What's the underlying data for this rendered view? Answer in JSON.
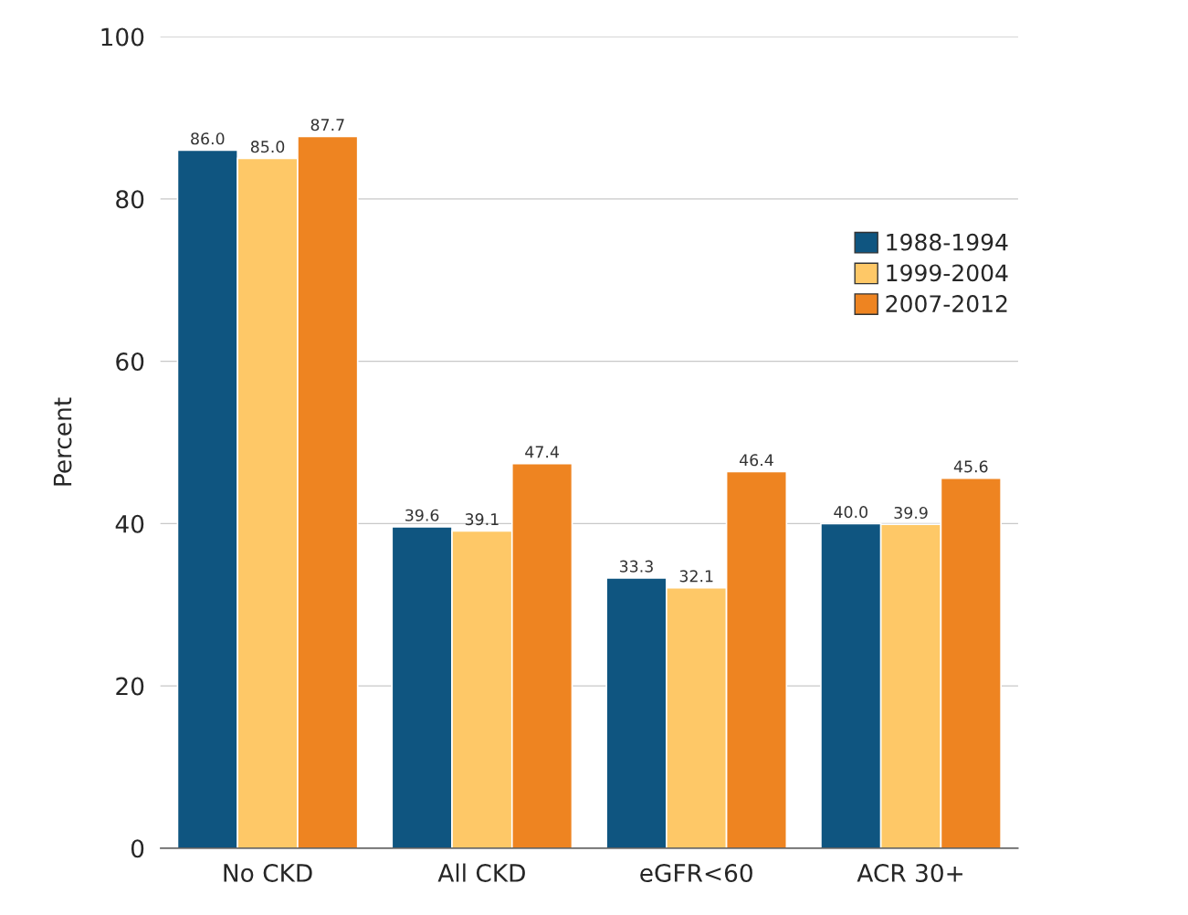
{
  "chart_data": {
    "type": "bar",
    "ylabel": "Percent",
    "categories": [
      "No CKD",
      "All CKD",
      "eGFR<60",
      "ACR 30+"
    ],
    "series": [
      {
        "name": "1988-1994",
        "color": "#0f5580",
        "values": [
          86.0,
          39.6,
          33.3,
          40.0
        ],
        "value_labels": [
          "86.0",
          "39.6",
          "33.3",
          "40.0"
        ]
      },
      {
        "name": "1999-2004",
        "color": "#fec867",
        "values": [
          85.0,
          39.1,
          32.1,
          39.9
        ],
        "value_labels": [
          "85.0",
          "39.1",
          "32.1",
          "39.9"
        ]
      },
      {
        "name": "2007-2012",
        "color": "#ee8421",
        "values": [
          87.7,
          47.4,
          46.4,
          45.6
        ],
        "value_labels": [
          "87.7",
          "47.4",
          "46.4",
          "45.6"
        ]
      }
    ],
    "ylim": [
      0,
      100
    ],
    "yticks": [
      0,
      20,
      40,
      60,
      80,
      100
    ],
    "grid": "y",
    "legend": "top right"
  }
}
